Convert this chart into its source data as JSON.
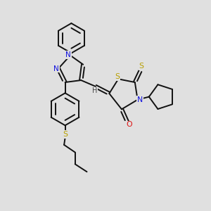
{
  "bg_color": "#e0e0e0",
  "bond_color": "#111111",
  "N_color": "#1010dd",
  "O_color": "#dd1010",
  "S_color": "#b8a000",
  "H_color": "#444444",
  "figsize": [
    3.0,
    3.0
  ],
  "dpi": 100,
  "xlim": [
    0,
    10
  ],
  "ylim": [
    0,
    10
  ]
}
